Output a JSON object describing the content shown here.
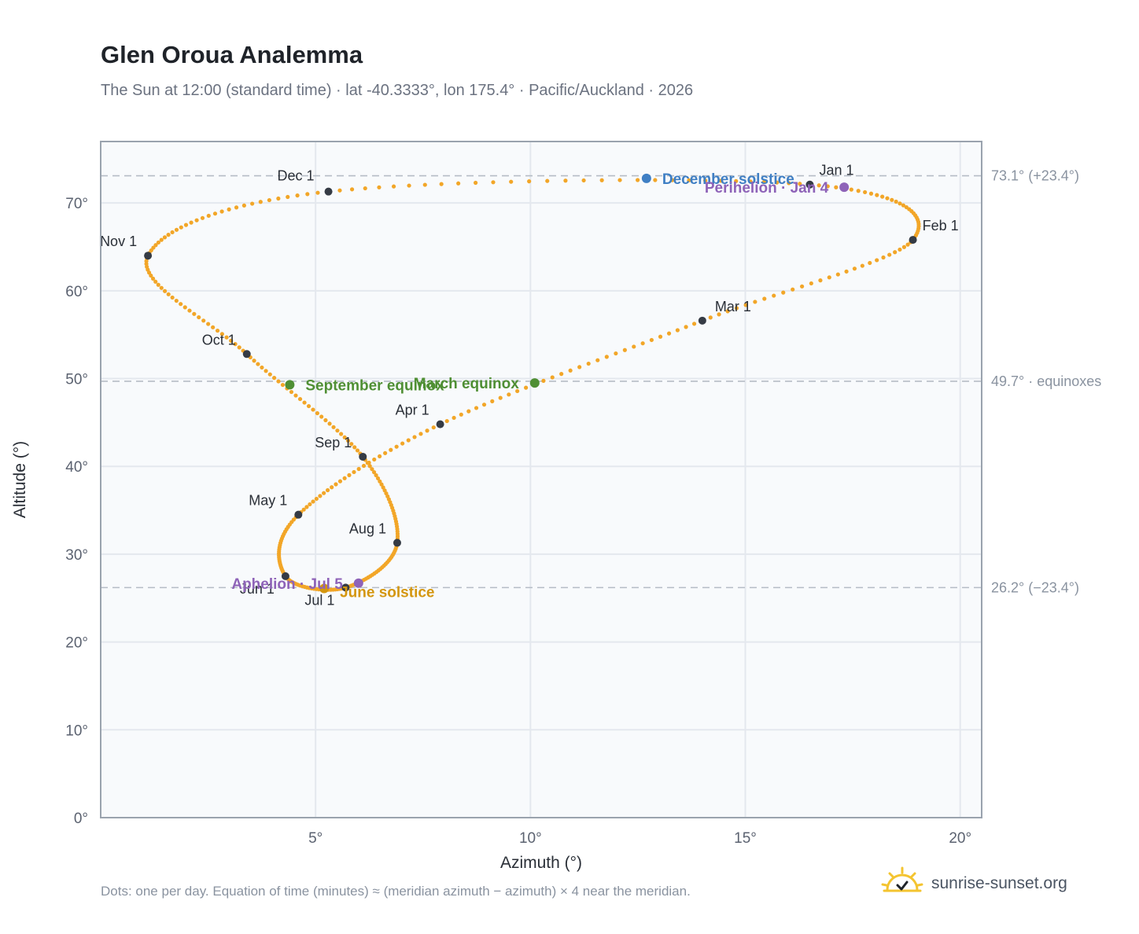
{
  "header": {
    "title": "Glen Oroua Analemma",
    "subtitle": "The Sun at 12:00 (standard time) · lat -40.3333°, lon 175.4° · Pacific/Auckland · 2026"
  },
  "footer": {
    "note": "Dots: one per day. Equation of time (minutes) ≈ (meridian azimuth − azimuth) × 4 near the meridian.",
    "brand": "sunrise-sunset.org"
  },
  "colors": {
    "path": "#f2a628",
    "month_dot": "#353b45",
    "solstice_dec": "#3f7fc4",
    "solstice_jun": "#d4960e",
    "equinox": "#4f8f34",
    "apsis": "#8e63b8",
    "plot_bg": "#f8fafc",
    "grid": "#e4e8ee",
    "frame": "#9aa3ae",
    "refline": "#b5bcc5"
  },
  "chart_data": {
    "type": "scatter",
    "xlabel": "Azimuth (°)",
    "ylabel": "Altitude (°)",
    "xlim": [
      0,
      20.5
    ],
    "ylim": [
      0,
      77
    ],
    "xticks": [
      5,
      10,
      15,
      20
    ],
    "xtick_labels": [
      "5°",
      "10°",
      "15°",
      "20°"
    ],
    "yticks": [
      0,
      10,
      20,
      30,
      40,
      50,
      60,
      70
    ],
    "ytick_labels": [
      "0°",
      "10°",
      "20°",
      "30°",
      "40°",
      "50°",
      "60°",
      "70°"
    ],
    "grid": true,
    "reference_lines": [
      {
        "y": 73.1,
        "label": "73.1° (+23.4°)"
      },
      {
        "y": 49.7,
        "label": "49.7° · equinoxes"
      },
      {
        "y": 26.2,
        "label": "26.2° (−23.4°)"
      }
    ],
    "path_keypoints": [
      {
        "day": 0,
        "az": 16.5,
        "alt": 72.1
      },
      {
        "day": 31,
        "az": 18.9,
        "alt": 65.8
      },
      {
        "day": 59,
        "az": 14.0,
        "alt": 56.6
      },
      {
        "day": 90,
        "az": 7.9,
        "alt": 44.8
      },
      {
        "day": 120,
        "az": 4.6,
        "alt": 34.5
      },
      {
        "day": 151,
        "az": 4.3,
        "alt": 27.5
      },
      {
        "day": 181,
        "az": 5.7,
        "alt": 26.2
      },
      {
        "day": 212,
        "az": 6.9,
        "alt": 31.3
      },
      {
        "day": 243,
        "az": 6.1,
        "alt": 41.1
      },
      {
        "day": 273,
        "az": 3.4,
        "alt": 52.8
      },
      {
        "day": 304,
        "az": 1.1,
        "alt": 64.0
      },
      {
        "day": 334,
        "az": 5.3,
        "alt": 71.3
      },
      {
        "day": 365,
        "az": 16.5,
        "alt": 72.1
      }
    ],
    "months": [
      {
        "label": "Jan 1",
        "az": 16.5,
        "alt": 72.1
      },
      {
        "label": "Feb 1",
        "az": 18.9,
        "alt": 65.8
      },
      {
        "label": "Mar 1",
        "az": 14.0,
        "alt": 56.6
      },
      {
        "label": "Apr 1",
        "az": 7.9,
        "alt": 44.8
      },
      {
        "label": "May 1",
        "az": 4.6,
        "alt": 34.5
      },
      {
        "label": "Jun 1",
        "az": 4.3,
        "alt": 27.5
      },
      {
        "label": "Jul 1",
        "az": 5.7,
        "alt": 26.2
      },
      {
        "label": "Aug 1",
        "az": 6.9,
        "alt": 31.3
      },
      {
        "label": "Sep 1",
        "az": 6.1,
        "alt": 41.1
      },
      {
        "label": "Oct 1",
        "az": 3.4,
        "alt": 52.8
      },
      {
        "label": "Nov 1",
        "az": 1.1,
        "alt": 64.0
      },
      {
        "label": "Dec 1",
        "az": 5.3,
        "alt": 71.3
      }
    ],
    "events": [
      {
        "label": "December solstice",
        "az": 12.7,
        "alt": 72.8,
        "color_key": "solstice_dec"
      },
      {
        "label": "Perihelion · Jan 4",
        "az": 17.3,
        "alt": 71.8,
        "color_key": "apsis"
      },
      {
        "label": "March equinox",
        "az": 10.1,
        "alt": 49.5,
        "color_key": "equinox"
      },
      {
        "label": "September equinox",
        "az": 4.4,
        "alt": 49.3,
        "color_key": "equinox"
      },
      {
        "label": "June solstice",
        "az": 5.2,
        "alt": 26.1,
        "color_key": "solstice_jun"
      },
      {
        "label": "Aphelion · Jul 5",
        "az": 6.0,
        "alt": 26.7,
        "color_key": "apsis"
      }
    ]
  }
}
